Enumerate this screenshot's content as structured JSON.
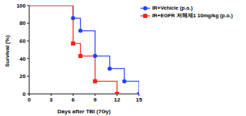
{
  "chart_data": {
    "type": "line",
    "line_style": "step",
    "x_label": "Days after TBI (7Gy)",
    "y_label": "Survival (%)",
    "xlim": [
      0,
      15
    ],
    "xticks": [
      0,
      3,
      6,
      9,
      12,
      15
    ],
    "ylim": [
      0,
      100
    ],
    "yticks": [
      0,
      20,
      40,
      60,
      80,
      100
    ],
    "grid": false,
    "legend": "upper right",
    "series": [
      {
        "name": "IR+Vehicle (p.o.)",
        "color": "#1f3fff",
        "marker": "circle",
        "x": [
          0,
          6,
          7,
          9,
          11,
          13,
          15
        ],
        "values": [
          100,
          85.7,
          71.4,
          42.9,
          28.6,
          14.3,
          0
        ]
      },
      {
        "name": "IR+EGFR 저해제1 10mg/kg (p.o.)",
        "color": "#ff1f1f",
        "marker": "square",
        "x": [
          0,
          6,
          7,
          9,
          12
        ],
        "values": [
          100,
          57.1,
          42.9,
          14.3,
          0
        ]
      }
    ]
  }
}
